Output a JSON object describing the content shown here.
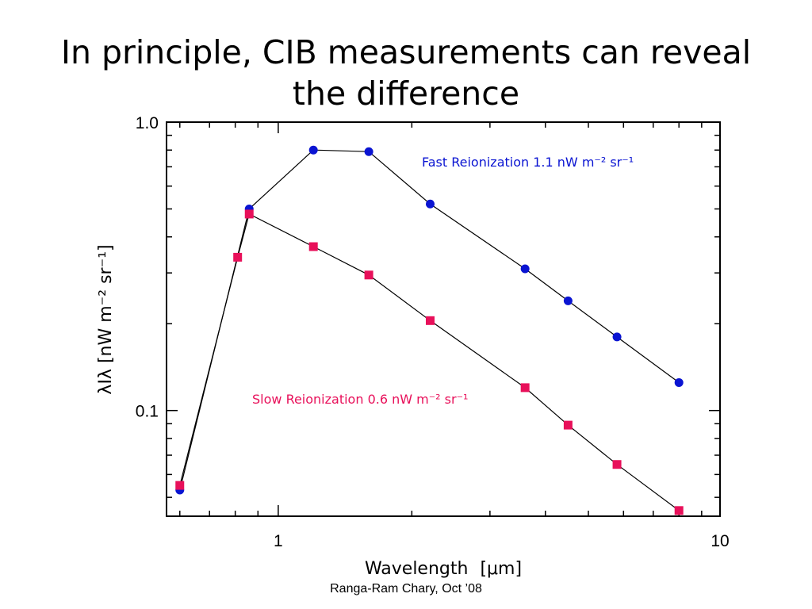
{
  "slide": {
    "title_line1": "In principle, CIB measurements can reveal",
    "title_line2": "the difference",
    "credit": "Ranga-Ram Chary, Oct ’08"
  },
  "chart_data": {
    "type": "line",
    "xlabel": "Wavelength",
    "xlabel_unit": "[μm]",
    "ylabel": "λIλ [nW m⁻² sr⁻¹]",
    "xscale": "log",
    "yscale": "log",
    "xlim": [
      0.56,
      9.9
    ],
    "ylim": [
      0.043,
      1.0
    ],
    "x_ticks": [
      {
        "value": 1,
        "label": "1"
      },
      {
        "value": 10,
        "label": "10"
      }
    ],
    "y_ticks": [
      {
        "value": 0.1,
        "label": "0.1"
      },
      {
        "value": 1.0,
        "label": "1.0"
      }
    ],
    "series": [
      {
        "name": "Fast Reionization",
        "annotation": "Fast Reionization 1.1 nW m⁻² sr⁻¹",
        "color": "#0a14d2",
        "marker": "circle",
        "x": [
          0.6,
          0.86,
          1.2,
          1.6,
          2.2,
          3.6,
          4.5,
          5.8,
          8.0
        ],
        "y": [
          0.053,
          0.5,
          0.8,
          0.79,
          0.52,
          0.31,
          0.24,
          0.18,
          0.125
        ]
      },
      {
        "name": "Slow Reionization",
        "annotation": "Slow Reionization 0.6 nW m⁻² sr⁻¹",
        "color": "#e8105a",
        "marker": "square",
        "x": [
          0.6,
          0.81,
          0.86,
          1.2,
          1.6,
          2.2,
          3.6,
          4.5,
          5.8,
          8.0
        ],
        "y": [
          0.055,
          0.34,
          0.48,
          0.37,
          0.295,
          0.205,
          0.12,
          0.089,
          0.065,
          0.045
        ]
      }
    ]
  }
}
